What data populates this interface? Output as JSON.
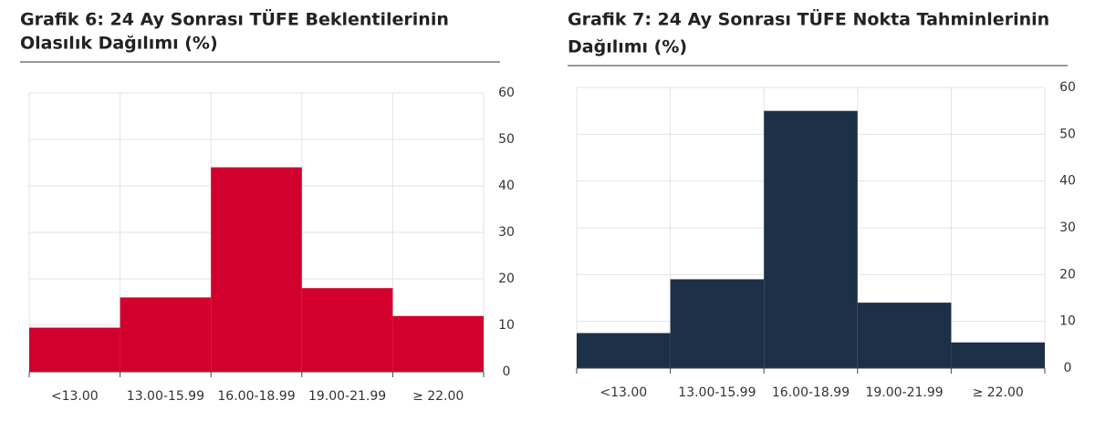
{
  "chart_data": [
    {
      "type": "bar",
      "title": [
        "Grafik 6: 24 Ay Sonrası TÜFE Beklentilerinin",
        "Olasılık Dağılımı (%)"
      ],
      "categories": [
        "<13.00",
        "13.00-15.99",
        "16.00-18.99",
        "19.00-21.99",
        "≥ 22.00"
      ],
      "values": [
        9.5,
        16,
        44,
        18,
        12
      ],
      "color": "#d2002d",
      "ylim": [
        0,
        60
      ],
      "yticks": [
        0,
        10,
        20,
        30,
        40,
        50,
        60
      ],
      "grid": true
    },
    {
      "type": "bar",
      "title": [
        "Grafik 7: 24 Ay Sonrası TÜFE Nokta Tahminlerinin",
        "Dağılımı (%)"
      ],
      "categories": [
        "<13.00",
        "13.00-15.99",
        "16.00-18.99",
        "19.00-21.99",
        "≥ 22.00"
      ],
      "values": [
        7.5,
        19,
        55,
        14,
        5.5
      ],
      "color": "#1c3047",
      "ylim": [
        0,
        60
      ],
      "yticks": [
        0,
        10,
        20,
        30,
        40,
        50,
        60
      ],
      "grid": true
    }
  ]
}
